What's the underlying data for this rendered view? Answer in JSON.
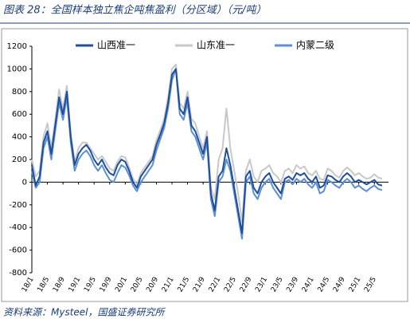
{
  "chart_data": {
    "type": "line",
    "title": "图表 28：全国样本独立焦企吨焦盈利（分区域）（元/吨）",
    "source": "资料来源：Mysteel，国盛证券研究所",
    "categories": [
      "18/1",
      null,
      null,
      null,
      "18/5",
      null,
      null,
      null,
      "18/9",
      null,
      null,
      null,
      "19/1",
      null,
      null,
      null,
      "19/5",
      null,
      null,
      null,
      "19/9",
      null,
      null,
      null,
      "20/1",
      null,
      null,
      null,
      "20/5",
      null,
      null,
      null,
      "20/9",
      null,
      null,
      null,
      "21/1",
      null,
      null,
      null,
      "21/5",
      null,
      null,
      null,
      "21/9",
      null,
      null,
      null,
      "22/1",
      null,
      null,
      null,
      "22/5",
      null,
      null,
      null,
      "22/9",
      null,
      null,
      null,
      "23/1",
      null,
      null,
      null,
      "23/5",
      null,
      null,
      null,
      "23/9",
      null,
      null,
      null,
      "24/1",
      null,
      null,
      null,
      "24/5",
      null,
      null,
      null,
      "24/9",
      null,
      null,
      null,
      "25/1",
      null,
      null,
      null,
      "25/5",
      null,
      null
    ],
    "series": [
      {
        "name": "山西准一",
        "color": "#1f4e9c",
        "values": [
          150,
          -30,
          50,
          350,
          450,
          250,
          500,
          750,
          600,
          800,
          400,
          150,
          250,
          300,
          330,
          280,
          200,
          150,
          200,
          130,
          80,
          60,
          150,
          200,
          180,
          100,
          0,
          -50,
          50,
          100,
          150,
          200,
          330,
          420,
          520,
          700,
          950,
          1000,
          650,
          600,
          750,
          500,
          450,
          350,
          250,
          400,
          -100,
          -250,
          50,
          100,
          300,
          150,
          -50,
          -250,
          -450,
          50,
          100,
          -50,
          -100,
          0,
          50,
          80,
          0,
          -50,
          -100,
          30,
          50,
          20,
          80,
          60,
          80,
          30,
          0,
          50,
          -50,
          -30,
          60,
          50,
          20,
          0,
          50,
          80,
          50,
          0,
          20,
          0,
          -20,
          0,
          20,
          -20,
          -30
        ]
      },
      {
        "name": "山东准一",
        "color": "#c8c8c8",
        "values": [
          200,
          50,
          100,
          400,
          520,
          300,
          550,
          820,
          650,
          850,
          420,
          180,
          300,
          350,
          350,
          300,
          250,
          200,
          230,
          180,
          120,
          100,
          180,
          230,
          220,
          130,
          30,
          -20,
          80,
          130,
          180,
          230,
          370,
          460,
          560,
          750,
          1000,
          1040,
          700,
          650,
          800,
          560,
          520,
          400,
          300,
          450,
          -50,
          -150,
          200,
          300,
          650,
          300,
          100,
          -100,
          -350,
          100,
          200,
          50,
          0,
          100,
          120,
          150,
          80,
          50,
          0,
          100,
          120,
          80,
          150,
          120,
          140,
          80,
          60,
          100,
          30,
          20,
          120,
          100,
          60,
          40,
          100,
          130,
          100,
          60,
          80,
          50,
          30,
          40,
          70,
          40,
          30
        ]
      },
      {
        "name": "内蒙二级",
        "color": "#5b8fd6",
        "values": [
          100,
          -50,
          0,
          300,
          400,
          200,
          450,
          700,
          550,
          750,
          350,
          100,
          200,
          250,
          280,
          230,
          150,
          100,
          150,
          80,
          20,
          0,
          80,
          150,
          130,
          60,
          -30,
          -80,
          0,
          50,
          100,
          150,
          280,
          380,
          480,
          650,
          900,
          1000,
          600,
          550,
          700,
          450,
          400,
          300,
          200,
          350,
          -150,
          -300,
          0,
          50,
          200,
          100,
          -100,
          -300,
          -500,
          0,
          50,
          -100,
          -150,
          -50,
          0,
          30,
          -50,
          -100,
          -150,
          0,
          20,
          -20,
          30,
          0,
          30,
          -20,
          -50,
          0,
          -100,
          -80,
          20,
          0,
          -30,
          -50,
          0,
          30,
          0,
          -50,
          -30,
          -60,
          -80,
          -50,
          -30,
          -60,
          -70
        ]
      }
    ],
    "ylim": [
      -800,
      1200
    ],
    "yticks": [
      -800,
      -600,
      -400,
      -200,
      0,
      200,
      400,
      600,
      800,
      1000,
      1200
    ]
  }
}
